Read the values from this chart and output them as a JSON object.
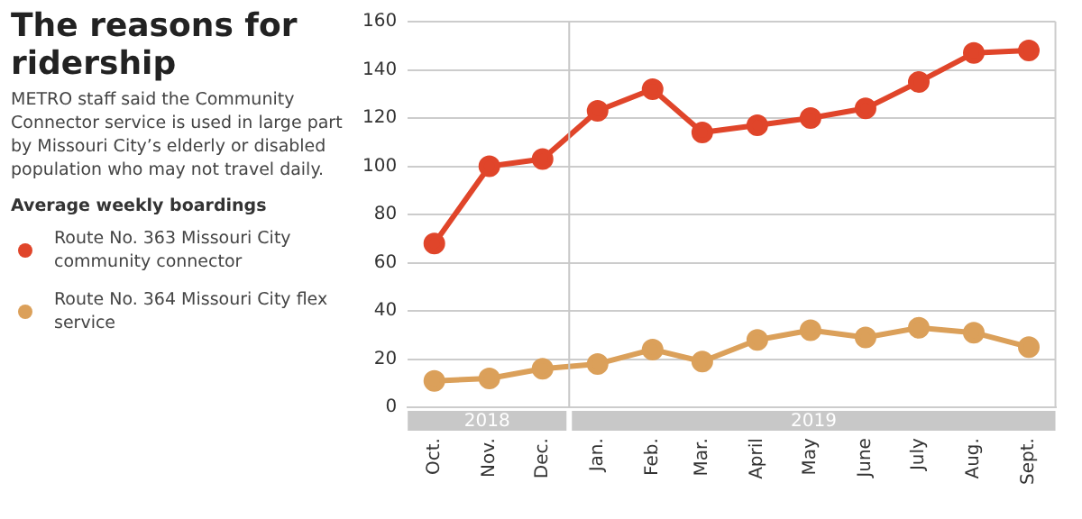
{
  "chart_data": {
    "type": "line",
    "title": "The reasons for ridership",
    "subtitle": "METRO staff said the Community Connector service is used in large part by Missouri City’s elderly or disabled population who may not travel daily.",
    "legend_title": "Average weekly boardings",
    "legend": "left",
    "grid": "y",
    "marker": "circle",
    "x": [
      "2018-10",
      "2018-11",
      "2018-12",
      "2019-01",
      "2019-02",
      "2019-03",
      "2019-04",
      "2019-05",
      "2019-06",
      "2019-07",
      "2019-08",
      "2019-09"
    ],
    "xlim": [
      "2018-09-16",
      "2019-09-16"
    ],
    "xticks": [
      {
        "value": "2018-10",
        "label": "Oct."
      },
      {
        "value": "2018-11",
        "label": "Nov."
      },
      {
        "value": "2018-12",
        "label": "Dec."
      },
      {
        "value": "2019-01",
        "label": "Jan."
      },
      {
        "value": "2019-02",
        "label": "Feb."
      },
      {
        "value": "2019-03",
        "label": "Mar."
      },
      {
        "value": "2019-04",
        "label": "April"
      },
      {
        "value": "2019-05",
        "label": "May"
      },
      {
        "value": "2019-06",
        "label": "June"
      },
      {
        "value": "2019-07",
        "label": "July"
      },
      {
        "value": "2019-08",
        "label": "Aug."
      },
      {
        "value": "2019-09",
        "label": "Sept."
      }
    ],
    "series": [
      {
        "name": "Route No. 363 Missouri City community connector",
        "color": "#e0452a",
        "values": [
          68,
          100,
          103,
          123,
          132,
          114,
          117,
          120,
          124,
          135,
          147,
          148
        ]
      },
      {
        "name": "Route No. 364 Missouri City flex service",
        "color": "#dba05a",
        "values": [
          11,
          12,
          16,
          18,
          24,
          19,
          28,
          32,
          29,
          33,
          31,
          25
        ]
      }
    ],
    "ylim": [
      0,
      160
    ],
    "yticks": [
      0,
      20,
      40,
      60,
      80,
      100,
      120,
      140,
      160
    ],
    "ref_lines": [
      {
        "axis": "x",
        "value": "2018-12-16",
        "color": "#c8c8c8"
      }
    ],
    "annotations": [
      "2018",
      "2019"
    ]
  }
}
